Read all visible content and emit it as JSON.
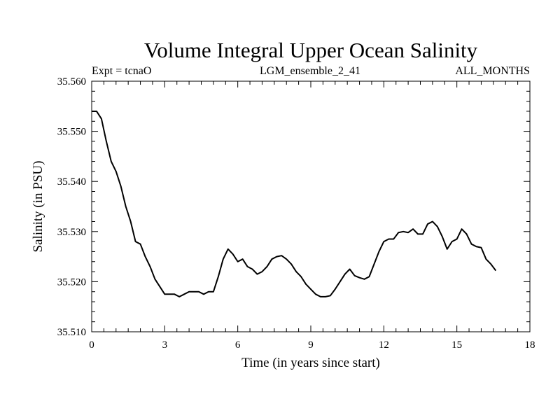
{
  "chart_data": {
    "type": "line",
    "title": "Volume Integral Upper Ocean Salinity",
    "subtitle_left": "Expt = tcnaO",
    "subtitle_center": "LGM_ensemble_2_41",
    "subtitle_right": "ALL_MONTHS",
    "xlabel": "Time (in years since start)",
    "ylabel": "Salinity (in PSU)",
    "xlim": [
      0,
      18
    ],
    "ylim": [
      35.51,
      35.56
    ],
    "xticks": [
      0,
      3,
      6,
      9,
      12,
      15,
      18
    ],
    "xtick_labels": [
      "0",
      "3",
      "6",
      "9",
      "12",
      "15",
      "18"
    ],
    "yticks": [
      35.51,
      35.52,
      35.53,
      35.54,
      35.55,
      35.56
    ],
    "ytick_labels": [
      "35.510",
      "35.520",
      "35.530",
      "35.540",
      "35.550",
      "35.560"
    ],
    "grid": false,
    "series": [
      {
        "name": "Salinity",
        "x": [
          0,
          0.2,
          0.4,
          0.6,
          0.8,
          1.0,
          1.2,
          1.4,
          1.6,
          1.8,
          2.0,
          2.2,
          2.4,
          2.6,
          2.8,
          3.0,
          3.2,
          3.4,
          3.6,
          3.8,
          4.0,
          4.2,
          4.4,
          4.6,
          4.8,
          5.0,
          5.2,
          5.4,
          5.6,
          5.8,
          6.0,
          6.2,
          6.4,
          6.6,
          6.8,
          7.0,
          7.2,
          7.4,
          7.6,
          7.8,
          8.0,
          8.2,
          8.4,
          8.6,
          8.8,
          9.0,
          9.2,
          9.4,
          9.6,
          9.8,
          10.0,
          10.2,
          10.4,
          10.6,
          10.8,
          11.0,
          11.2,
          11.4,
          11.6,
          11.8,
          12.0,
          12.2,
          12.4,
          12.6,
          12.8,
          13.0,
          13.2,
          13.4,
          13.6,
          13.8,
          14.0,
          14.2,
          14.4,
          14.6,
          14.8,
          15.0,
          15.2,
          15.4,
          15.6,
          15.8,
          16.0,
          16.2,
          16.4,
          16.6
        ],
        "values": [
          35.554,
          35.554,
          35.5525,
          35.548,
          35.544,
          35.542,
          35.539,
          35.535,
          35.532,
          35.528,
          35.5275,
          35.525,
          35.523,
          35.5205,
          35.519,
          35.5175,
          35.5175,
          35.5175,
          35.517,
          35.5175,
          35.518,
          35.518,
          35.518,
          35.5175,
          35.518,
          35.518,
          35.521,
          35.5245,
          35.5265,
          35.5255,
          35.524,
          35.5245,
          35.523,
          35.5225,
          35.5215,
          35.522,
          35.523,
          35.5245,
          35.525,
          35.5252,
          35.5245,
          35.5235,
          35.522,
          35.521,
          35.5195,
          35.5185,
          35.5175,
          35.517,
          35.517,
          35.5172,
          35.5185,
          35.52,
          35.5215,
          35.5225,
          35.5212,
          35.5208,
          35.5205,
          35.521,
          35.5235,
          35.526,
          35.528,
          35.5285,
          35.5285,
          35.5298,
          35.53,
          35.5298,
          35.5305,
          35.5295,
          35.5295,
          35.5315,
          35.532,
          35.531,
          35.529,
          35.5265,
          35.528,
          35.5285,
          35.5305,
          35.5295,
          35.5275,
          35.527,
          35.5268,
          35.5245,
          35.5235,
          35.5222
        ]
      }
    ]
  }
}
